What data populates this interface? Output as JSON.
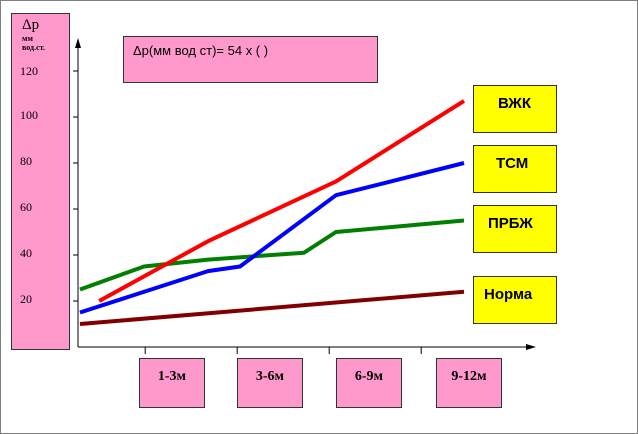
{
  "chart_data": {
    "type": "line",
    "title": "",
    "formula": "Δp(мм вод ст)= 54 х ( )",
    "ylabel": "Δp",
    "ylabel_unit": "мм вод.ст.",
    "ylim": [
      0,
      130
    ],
    "yticks": [
      "20",
      "40",
      "60",
      "80",
      "100",
      "120"
    ],
    "categories": [
      "1-3м",
      "3-6м",
      "6-9м",
      "9-12м"
    ],
    "series": [
      {
        "name": "ВЖК",
        "color": "#ff0000",
        "x": [
          0.15,
          1,
          2,
          3
        ],
        "values": [
          20,
          46,
          72,
          107
        ]
      },
      {
        "name": "ТСМ",
        "color": "#0000ff",
        "x": [
          0,
          1,
          1.25,
          2,
          3
        ],
        "values": [
          15,
          33,
          35,
          66,
          80
        ]
      },
      {
        "name": "ПРБЖ",
        "color": "#007f00",
        "x": [
          0,
          0.5,
          1,
          1.75,
          2,
          3
        ],
        "values": [
          25,
          35,
          38,
          41,
          50,
          55
        ]
      },
      {
        "name": "Норма",
        "color": "#800000",
        "x": [
          0,
          3
        ],
        "values": [
          10,
          24
        ]
      }
    ]
  }
}
